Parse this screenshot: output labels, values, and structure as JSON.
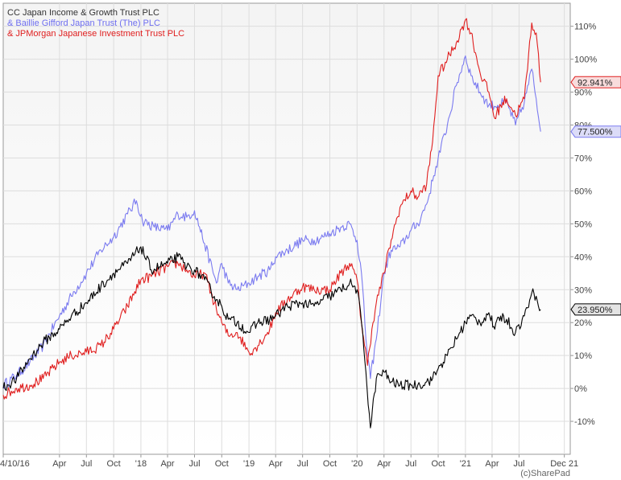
{
  "chart_data": {
    "type": "line",
    "title": "",
    "xlabel": "",
    "ylabel": "",
    "credit": "(c)SharePad",
    "ylim": [
      -20,
      117
    ],
    "xlim": [
      0,
      1915
    ],
    "grid": true,
    "legend_placement": "top-left",
    "y_ticks": [
      -10,
      0,
      10,
      20,
      30,
      40,
      50,
      60,
      70,
      80,
      90,
      100,
      110
    ],
    "y_tick_labels": [
      "-10%",
      "0%",
      "10%",
      "20%",
      "30%",
      "40%",
      "50%",
      "60%",
      "70%",
      "80%",
      "90%",
      "100%",
      "110%"
    ],
    "x_ticks": [
      {
        "label": "4/10/16",
        "pos": 0
      },
      {
        "label": "Apr",
        "pos": 190
      },
      {
        "label": "Jul",
        "pos": 281
      },
      {
        "label": "Oct",
        "pos": 373
      },
      {
        "label": "'18",
        "pos": 465
      },
      {
        "label": "Apr",
        "pos": 555
      },
      {
        "label": "Jul",
        "pos": 646
      },
      {
        "label": "Oct",
        "pos": 738
      },
      {
        "label": "'19",
        "pos": 830
      },
      {
        "label": "Apr",
        "pos": 920
      },
      {
        "label": "Jul",
        "pos": 1011
      },
      {
        "label": "Oct",
        "pos": 1103
      },
      {
        "label": "'20",
        "pos": 1195
      },
      {
        "label": "Apr",
        "pos": 1286
      },
      {
        "label": "Jul",
        "pos": 1377
      },
      {
        "label": "Oct",
        "pos": 1469
      },
      {
        "label": "'21",
        "pos": 1561
      },
      {
        "label": "Apr",
        "pos": 1651
      },
      {
        "label": "Jul",
        "pos": 1742
      },
      {
        "label": "Dec 21",
        "pos": 1895
      }
    ],
    "series": [
      {
        "name": "& Baillie Gifford Japan Trust (The) PLC",
        "color": "#7b7bf0",
        "last_label": "77.500%",
        "points": [
          [
            0,
            1
          ],
          [
            45,
            4
          ],
          [
            90,
            8
          ],
          [
            135,
            13
          ],
          [
            190,
            22
          ],
          [
            230,
            28
          ],
          [
            281,
            35
          ],
          [
            330,
            42
          ],
          [
            373,
            46
          ],
          [
            420,
            53
          ],
          [
            450,
            57
          ],
          [
            470,
            51
          ],
          [
            510,
            49
          ],
          [
            555,
            48
          ],
          [
            590,
            53
          ],
          [
            620,
            52
          ],
          [
            646,
            54
          ],
          [
            680,
            44
          ],
          [
            720,
            32
          ],
          [
            738,
            38
          ],
          [
            760,
            32
          ],
          [
            790,
            30
          ],
          [
            830,
            32
          ],
          [
            860,
            34
          ],
          [
            900,
            36
          ],
          [
            920,
            40
          ],
          [
            960,
            42
          ],
          [
            1011,
            45
          ],
          [
            1050,
            45
          ],
          [
            1080,
            46
          ],
          [
            1103,
            47
          ],
          [
            1140,
            49
          ],
          [
            1170,
            50
          ],
          [
            1195,
            45
          ],
          [
            1210,
            35
          ],
          [
            1225,
            15
          ],
          [
            1240,
            3
          ],
          [
            1260,
            15
          ],
          [
            1286,
            35
          ],
          [
            1310,
            42
          ],
          [
            1340,
            43
          ],
          [
            1377,
            48
          ],
          [
            1400,
            50
          ],
          [
            1430,
            56
          ],
          [
            1450,
            63
          ],
          [
            1469,
            70
          ],
          [
            1500,
            80
          ],
          [
            1530,
            92
          ],
          [
            1561,
            101
          ],
          [
            1580,
            95
          ],
          [
            1610,
            90
          ],
          [
            1640,
            86
          ],
          [
            1670,
            86
          ],
          [
            1700,
            87
          ],
          [
            1730,
            80
          ],
          [
            1760,
            87
          ],
          [
            1785,
            97
          ],
          [
            1800,
            88
          ],
          [
            1815,
            78
          ]
        ]
      },
      {
        "name": "& JPMorgan Japanese Investment Trust PLC",
        "color": "#e02020",
        "last_label": "92.941%",
        "points": [
          [
            0,
            -2
          ],
          [
            45,
            0
          ],
          [
            90,
            1
          ],
          [
            135,
            3
          ],
          [
            190,
            8
          ],
          [
            230,
            10
          ],
          [
            281,
            11
          ],
          [
            330,
            13
          ],
          [
            373,
            18
          ],
          [
            420,
            25
          ],
          [
            465,
            33
          ],
          [
            500,
            34
          ],
          [
            555,
            37
          ],
          [
            590,
            38
          ],
          [
            620,
            36
          ],
          [
            646,
            34
          ],
          [
            680,
            35
          ],
          [
            720,
            24
          ],
          [
            738,
            20
          ],
          [
            760,
            16
          ],
          [
            790,
            17
          ],
          [
            830,
            11
          ],
          [
            860,
            13
          ],
          [
            900,
            18
          ],
          [
            920,
            23
          ],
          [
            960,
            27
          ],
          [
            1011,
            31
          ],
          [
            1050,
            30
          ],
          [
            1080,
            30
          ],
          [
            1103,
            30
          ],
          [
            1140,
            35
          ],
          [
            1170,
            38
          ],
          [
            1195,
            33
          ],
          [
            1210,
            20
          ],
          [
            1230,
            7
          ],
          [
            1245,
            18
          ],
          [
            1260,
            26
          ],
          [
            1286,
            35
          ],
          [
            1310,
            45
          ],
          [
            1340,
            55
          ],
          [
            1377,
            60
          ],
          [
            1400,
            58
          ],
          [
            1430,
            62
          ],
          [
            1450,
            75
          ],
          [
            1469,
            95
          ],
          [
            1500,
            100
          ],
          [
            1530,
            105
          ],
          [
            1561,
            112
          ],
          [
            1580,
            108
          ],
          [
            1610,
            96
          ],
          [
            1640,
            90
          ],
          [
            1660,
            82
          ],
          [
            1680,
            86
          ],
          [
            1700,
            88
          ],
          [
            1730,
            83
          ],
          [
            1760,
            88
          ],
          [
            1785,
            111
          ],
          [
            1800,
            108
          ],
          [
            1815,
            93
          ]
        ]
      },
      {
        "name": "CC Japan Income & Growth Trust PLC",
        "color": "#000000",
        "last_label": "23.950%",
        "points": [
          [
            0,
            0
          ],
          [
            45,
            3
          ],
          [
            90,
            9
          ],
          [
            135,
            14
          ],
          [
            190,
            18
          ],
          [
            230,
            22
          ],
          [
            281,
            26
          ],
          [
            330,
            31
          ],
          [
            373,
            35
          ],
          [
            420,
            38
          ],
          [
            465,
            43
          ],
          [
            500,
            36
          ],
          [
            555,
            38
          ],
          [
            590,
            40
          ],
          [
            620,
            37
          ],
          [
            646,
            36
          ],
          [
            680,
            33
          ],
          [
            720,
            27
          ],
          [
            738,
            25
          ],
          [
            760,
            21
          ],
          [
            790,
            20
          ],
          [
            830,
            17
          ],
          [
            860,
            20
          ],
          [
            900,
            21
          ],
          [
            920,
            22
          ],
          [
            960,
            25
          ],
          [
            1011,
            26
          ],
          [
            1050,
            25
          ],
          [
            1080,
            27
          ],
          [
            1103,
            28
          ],
          [
            1140,
            30
          ],
          [
            1170,
            32
          ],
          [
            1195,
            30
          ],
          [
            1210,
            20
          ],
          [
            1225,
            5
          ],
          [
            1240,
            -12
          ],
          [
            1260,
            3
          ],
          [
            1286,
            5
          ],
          [
            1310,
            2
          ],
          [
            1340,
            1
          ],
          [
            1377,
            1
          ],
          [
            1400,
            1
          ],
          [
            1430,
            2
          ],
          [
            1450,
            3
          ],
          [
            1469,
            6
          ],
          [
            1500,
            10
          ],
          [
            1530,
            15
          ],
          [
            1561,
            20
          ],
          [
            1580,
            22
          ],
          [
            1610,
            20
          ],
          [
            1640,
            23
          ],
          [
            1660,
            18
          ],
          [
            1680,
            22
          ],
          [
            1700,
            21
          ],
          [
            1730,
            17
          ],
          [
            1760,
            22
          ],
          [
            1785,
            29
          ],
          [
            1800,
            28
          ],
          [
            1815,
            24
          ]
        ]
      }
    ],
    "legend": [
      {
        "text": "CC Japan Income & Growth Trust PLC",
        "color": "#333333"
      },
      {
        "text": "& Baillie Gifford Japan Trust (The) PLC",
        "color": "#6f6ff0"
      },
      {
        "text": "& JPMorgan Japanese Investment Trust PLC",
        "color": "#e02020"
      }
    ]
  }
}
